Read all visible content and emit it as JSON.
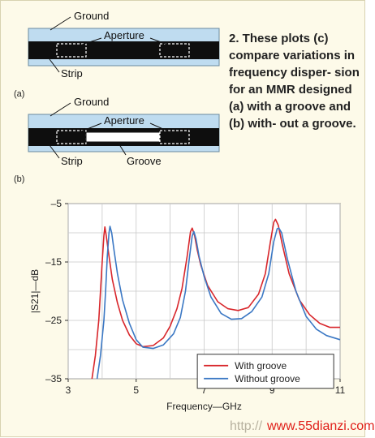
{
  "diagram_a": {
    "ground_label": "Ground",
    "aperture_label": "Aperture",
    "strip_label": "Strip",
    "index_label": "(a)",
    "colors": {
      "substrate": "#bfdcf0",
      "strip": "#0e0e0e"
    }
  },
  "diagram_b": {
    "ground_label": "Ground",
    "aperture_label": "Aperture",
    "strip_label": "Strip",
    "groove_label": "Groove",
    "index_label": "(b)",
    "colors": {
      "substrate": "#bfdcf0",
      "strip": "#0e0e0e",
      "groove": "#ffffff"
    }
  },
  "caption": {
    "text": "2. These plots (c) compare variations in frequency disper- sion for an MMR designed (a) with a groove and (b) with- out a groove."
  },
  "chart_data": {
    "type": "line",
    "xlabel": "Frequency—GHz",
    "ylabel": "|S21|—dB",
    "xlim": [
      3,
      11
    ],
    "ylim": [
      -35,
      -5
    ],
    "xticks": [
      3,
      5,
      7,
      9,
      11
    ],
    "yticks": [
      -5,
      -15,
      -25,
      -35
    ],
    "grid": true,
    "legend_position": "bottom-right",
    "plot_background": "#ffffff",
    "series": [
      {
        "name": "With groove",
        "color": "#d8262b",
        "points": [
          [
            3.7,
            -35
          ],
          [
            3.8,
            -31
          ],
          [
            3.9,
            -25
          ],
          [
            3.95,
            -20
          ],
          [
            4.0,
            -15
          ],
          [
            4.05,
            -10.5
          ],
          [
            4.08,
            -9.0
          ],
          [
            4.12,
            -10.5
          ],
          [
            4.2,
            -14
          ],
          [
            4.3,
            -18
          ],
          [
            4.45,
            -22
          ],
          [
            4.6,
            -25
          ],
          [
            4.8,
            -27.5
          ],
          [
            5.0,
            -29
          ],
          [
            5.2,
            -29.5
          ],
          [
            5.5,
            -29.3
          ],
          [
            5.8,
            -28
          ],
          [
            6.0,
            -26
          ],
          [
            6.2,
            -23
          ],
          [
            6.35,
            -19.5
          ],
          [
            6.5,
            -14
          ],
          [
            6.6,
            -9.8
          ],
          [
            6.65,
            -9.2
          ],
          [
            6.72,
            -10.5
          ],
          [
            6.8,
            -13
          ],
          [
            6.9,
            -15.5
          ],
          [
            7.1,
            -19
          ],
          [
            7.4,
            -21.8
          ],
          [
            7.7,
            -23
          ],
          [
            8.0,
            -23.3
          ],
          [
            8.3,
            -22.8
          ],
          [
            8.6,
            -20.5
          ],
          [
            8.8,
            -17
          ],
          [
            8.95,
            -11.5
          ],
          [
            9.05,
            -8.2
          ],
          [
            9.1,
            -7.7
          ],
          [
            9.18,
            -8.7
          ],
          [
            9.3,
            -12
          ],
          [
            9.5,
            -17
          ],
          [
            9.8,
            -21.5
          ],
          [
            10.1,
            -24
          ],
          [
            10.4,
            -25.5
          ],
          [
            10.7,
            -26.2
          ],
          [
            11,
            -26.2
          ]
        ]
      },
      {
        "name": "Without groove",
        "color": "#3b78c4",
        "points": [
          [
            3.85,
            -35
          ],
          [
            3.95,
            -31
          ],
          [
            4.05,
            -25
          ],
          [
            4.1,
            -20
          ],
          [
            4.15,
            -14
          ],
          [
            4.2,
            -10
          ],
          [
            4.23,
            -8.9
          ],
          [
            4.28,
            -10
          ],
          [
            4.35,
            -13
          ],
          [
            4.45,
            -17
          ],
          [
            4.6,
            -21.5
          ],
          [
            4.8,
            -25.5
          ],
          [
            5.0,
            -28.3
          ],
          [
            5.2,
            -29.6
          ],
          [
            5.5,
            -29.8
          ],
          [
            5.8,
            -29.2
          ],
          [
            6.1,
            -27.3
          ],
          [
            6.3,
            -24.5
          ],
          [
            6.45,
            -20
          ],
          [
            6.55,
            -15
          ],
          [
            6.65,
            -10.5
          ],
          [
            6.7,
            -9.8
          ],
          [
            6.76,
            -11
          ],
          [
            6.85,
            -14
          ],
          [
            7.0,
            -17.5
          ],
          [
            7.2,
            -21
          ],
          [
            7.5,
            -23.8
          ],
          [
            7.8,
            -24.8
          ],
          [
            8.1,
            -24.7
          ],
          [
            8.4,
            -23.5
          ],
          [
            8.7,
            -21
          ],
          [
            8.9,
            -17
          ],
          [
            9.05,
            -11.5
          ],
          [
            9.15,
            -9.3
          ],
          [
            9.2,
            -9.2
          ],
          [
            9.28,
            -10
          ],
          [
            9.45,
            -14.5
          ],
          [
            9.7,
            -20
          ],
          [
            10.0,
            -24.3
          ],
          [
            10.3,
            -26.5
          ],
          [
            10.6,
            -27.6
          ],
          [
            11,
            -28.3
          ]
        ]
      }
    ]
  },
  "watermark": {
    "gray_text": "http://",
    "red_text": "www.55dianzi.com"
  }
}
